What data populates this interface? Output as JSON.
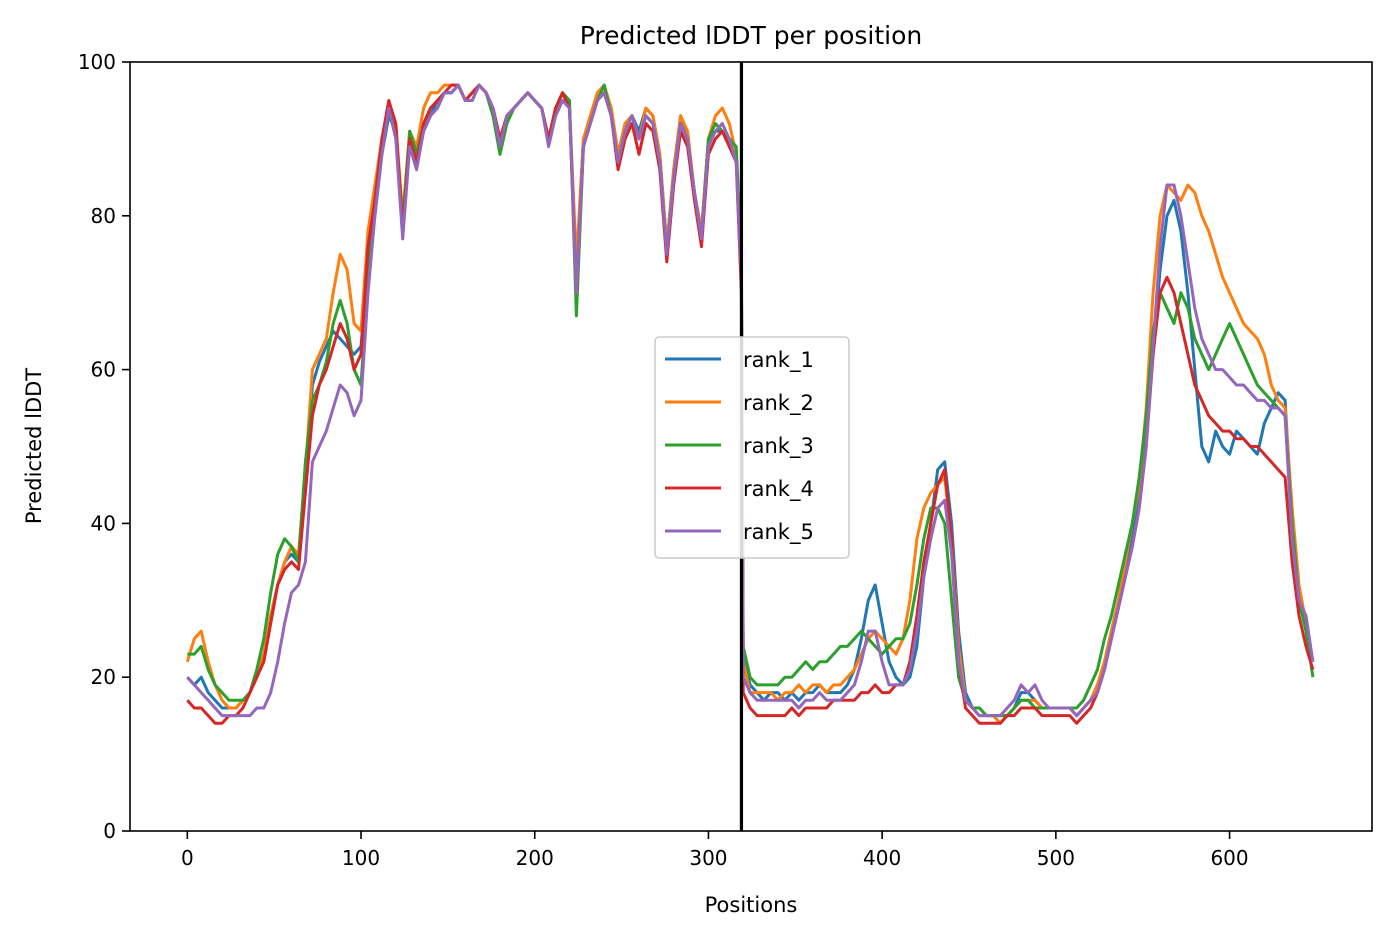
{
  "chart_data": {
    "type": "line",
    "title": "Predicted lDDT per position",
    "xlabel": "Positions",
    "ylabel": "Predicted lDDT",
    "xlim": [
      -33,
      682
    ],
    "ylim": [
      0,
      100
    ],
    "xticks": [
      0,
      100,
      200,
      300,
      400,
      500,
      600
    ],
    "yticks": [
      0,
      20,
      40,
      60,
      80,
      100
    ],
    "grid": false,
    "legend": "center",
    "vertical_line": {
      "x": 319,
      "color": "#000000"
    },
    "x": [
      0,
      4,
      8,
      12,
      16,
      20,
      24,
      28,
      32,
      36,
      40,
      44,
      48,
      52,
      56,
      60,
      64,
      68,
      72,
      76,
      80,
      84,
      88,
      92,
      96,
      100,
      104,
      108,
      112,
      116,
      120,
      124,
      128,
      132,
      136,
      140,
      144,
      148,
      152,
      156,
      160,
      164,
      168,
      172,
      176,
      180,
      184,
      188,
      192,
      196,
      200,
      204,
      208,
      212,
      216,
      220,
      224,
      228,
      232,
      236,
      240,
      244,
      248,
      252,
      256,
      260,
      264,
      268,
      272,
      276,
      280,
      284,
      288,
      292,
      296,
      300,
      304,
      308,
      312,
      316,
      319,
      320,
      324,
      328,
      332,
      336,
      340,
      344,
      348,
      352,
      356,
      360,
      364,
      368,
      372,
      376,
      380,
      384,
      388,
      392,
      396,
      400,
      404,
      408,
      412,
      416,
      420,
      424,
      428,
      432,
      436,
      440,
      444,
      448,
      452,
      456,
      460,
      464,
      468,
      472,
      476,
      480,
      484,
      488,
      492,
      496,
      500,
      504,
      508,
      512,
      516,
      520,
      524,
      528,
      532,
      536,
      540,
      544,
      548,
      552,
      556,
      560,
      564,
      568,
      572,
      576,
      580,
      584,
      588,
      592,
      596,
      600,
      604,
      608,
      612,
      616,
      620,
      624,
      628,
      632,
      636,
      640,
      644,
      648
    ],
    "series": [
      {
        "name": "rank_1",
        "color": "#1f77b4",
        "values": [
          20,
          19,
          20,
          18,
          17,
          16,
          16,
          16,
          17,
          18,
          20,
          23,
          28,
          32,
          35,
          36,
          35,
          45,
          58,
          61,
          63,
          65,
          64,
          63,
          62,
          63,
          74,
          80,
          88,
          93,
          91,
          78,
          90,
          87,
          91,
          93,
          95,
          96,
          96,
          97,
          95,
          96,
          97,
          96,
          94,
          90,
          93,
          94,
          95,
          96,
          95,
          94,
          90,
          93,
          95,
          94,
          72,
          90,
          92,
          95,
          96,
          94,
          88,
          92,
          93,
          91,
          94,
          93,
          88,
          76,
          86,
          93,
          90,
          83,
          78,
          90,
          91,
          91,
          90,
          88,
          72,
          23,
          19,
          18,
          17,
          18,
          18,
          17,
          18,
          17,
          18,
          18,
          19,
          18,
          18,
          18,
          19,
          21,
          25,
          30,
          32,
          27,
          22,
          20,
          19,
          20,
          24,
          33,
          40,
          47,
          48,
          40,
          26,
          18,
          16,
          16,
          15,
          15,
          15,
          15,
          16,
          18,
          18,
          17,
          16,
          16,
          16,
          16,
          16,
          15,
          16,
          17,
          19,
          22,
          26,
          30,
          34,
          38,
          43,
          52,
          62,
          73,
          80,
          82,
          78,
          70,
          60,
          50,
          48,
          52,
          50,
          49,
          52,
          51,
          50,
          49,
          53,
          55,
          57,
          56,
          40,
          30,
          26,
          22
        ]
      },
      {
        "name": "rank_2",
        "color": "#ff7f0e",
        "values": [
          22,
          25,
          26,
          22,
          19,
          17,
          16,
          16,
          17,
          18,
          20,
          23,
          28,
          32,
          35,
          37,
          36,
          47,
          60,
          62,
          64,
          70,
          75,
          73,
          66,
          65,
          78,
          84,
          90,
          94,
          92,
          80,
          91,
          89,
          94,
          96,
          96,
          97,
          97,
          97,
          95,
          96,
          97,
          96,
          94,
          90,
          93,
          94,
          95,
          96,
          95,
          94,
          90,
          94,
          96,
          94,
          74,
          90,
          93,
          96,
          97,
          94,
          88,
          92,
          93,
          90,
          94,
          93,
          88,
          76,
          86,
          93,
          91,
          83,
          78,
          90,
          93,
          94,
          92,
          88,
          72,
          22,
          18,
          18,
          18,
          18,
          17,
          18,
          18,
          19,
          18,
          19,
          19,
          18,
          19,
          19,
          20,
          21,
          23,
          25,
          26,
          25,
          24,
          23,
          25,
          30,
          38,
          42,
          44,
          45,
          46,
          38,
          24,
          17,
          16,
          15,
          15,
          15,
          14,
          15,
          16,
          17,
          17,
          17,
          16,
          16,
          16,
          16,
          16,
          15,
          16,
          17,
          19,
          22,
          26,
          30,
          35,
          40,
          45,
          55,
          70,
          80,
          84,
          83,
          82,
          84,
          83,
          80,
          78,
          75,
          72,
          70,
          68,
          66,
          65,
          64,
          62,
          58,
          56,
          55,
          42,
          32,
          27,
          22
        ]
      },
      {
        "name": "rank_3",
        "color": "#2ca02c",
        "values": [
          23,
          23,
          24,
          21,
          19,
          18,
          17,
          17,
          17,
          18,
          21,
          25,
          31,
          36,
          38,
          37,
          35,
          48,
          56,
          58,
          61,
          66,
          69,
          66,
          60,
          58,
          72,
          82,
          89,
          94,
          91,
          79,
          91,
          88,
          92,
          94,
          95,
          96,
          96,
          97,
          95,
          95,
          97,
          96,
          93,
          88,
          92,
          94,
          95,
          96,
          95,
          94,
          90,
          94,
          96,
          95,
          67,
          89,
          92,
          95,
          97,
          93,
          87,
          91,
          93,
          90,
          93,
          92,
          87,
          75,
          85,
          92,
          90,
          83,
          77,
          90,
          92,
          91,
          90,
          89,
          74,
          24,
          20,
          19,
          19,
          19,
          19,
          20,
          20,
          21,
          22,
          21,
          22,
          22,
          23,
          24,
          24,
          25,
          26,
          25,
          24,
          23,
          24,
          25,
          25,
          27,
          32,
          38,
          42,
          42,
          40,
          30,
          20,
          17,
          16,
          16,
          15,
          15,
          15,
          15,
          16,
          17,
          17,
          16,
          16,
          16,
          16,
          16,
          16,
          16,
          17,
          19,
          21,
          25,
          28,
          32,
          36,
          40,
          46,
          54,
          65,
          70,
          68,
          66,
          70,
          68,
          64,
          62,
          60,
          62,
          64,
          66,
          64,
          62,
          60,
          58,
          57,
          56,
          55,
          54,
          40,
          30,
          26,
          20
        ]
      },
      {
        "name": "rank_4",
        "color": "#d62728",
        "values": [
          17,
          16,
          16,
          15,
          14,
          14,
          15,
          15,
          16,
          18,
          20,
          22,
          27,
          32,
          34,
          35,
          34,
          44,
          54,
          58,
          60,
          63,
          66,
          64,
          60,
          62,
          76,
          82,
          90,
          95,
          92,
          78,
          90,
          87,
          92,
          94,
          95,
          96,
          97,
          97,
          95,
          96,
          97,
          96,
          94,
          90,
          93,
          94,
          95,
          96,
          95,
          94,
          90,
          94,
          96,
          94,
          70,
          89,
          92,
          95,
          96,
          93,
          86,
          90,
          92,
          88,
          92,
          91,
          86,
          74,
          84,
          91,
          89,
          82,
          76,
          88,
          90,
          91,
          89,
          87,
          70,
          18,
          16,
          15,
          15,
          15,
          15,
          15,
          16,
          15,
          16,
          16,
          16,
          16,
          17,
          17,
          17,
          17,
          18,
          18,
          19,
          18,
          18,
          19,
          19,
          22,
          28,
          35,
          40,
          45,
          47,
          38,
          22,
          16,
          15,
          14,
          14,
          14,
          14,
          15,
          15,
          16,
          16,
          16,
          15,
          15,
          15,
          15,
          15,
          14,
          15,
          16,
          18,
          21,
          25,
          29,
          33,
          37,
          42,
          50,
          62,
          70,
          72,
          70,
          66,
          62,
          58,
          56,
          54,
          53,
          52,
          52,
          51,
          51,
          50,
          50,
          49,
          48,
          47,
          46,
          35,
          28,
          24,
          21
        ]
      },
      {
        "name": "rank_5",
        "color": "#9467bd",
        "values": [
          20,
          19,
          18,
          17,
          16,
          15,
          15,
          15,
          15,
          15,
          16,
          16,
          18,
          22,
          27,
          31,
          32,
          35,
          48,
          50,
          52,
          55,
          58,
          57,
          54,
          56,
          70,
          80,
          88,
          94,
          90,
          77,
          89,
          86,
          91,
          93,
          94,
          96,
          96,
          97,
          95,
          95,
          97,
          96,
          94,
          89,
          93,
          94,
          95,
          96,
          95,
          94,
          89,
          93,
          95,
          94,
          70,
          89,
          92,
          95,
          96,
          93,
          87,
          91,
          93,
          90,
          93,
          92,
          87,
          75,
          85,
          92,
          90,
          83,
          77,
          89,
          91,
          92,
          90,
          87,
          72,
          20,
          18,
          17,
          17,
          17,
          17,
          17,
          17,
          16,
          17,
          17,
          18,
          17,
          17,
          17,
          18,
          19,
          22,
          26,
          26,
          22,
          19,
          19,
          19,
          21,
          26,
          33,
          38,
          42,
          43,
          36,
          22,
          17,
          16,
          15,
          15,
          15,
          15,
          16,
          17,
          19,
          18,
          19,
          17,
          16,
          16,
          16,
          16,
          15,
          16,
          17,
          18,
          21,
          25,
          29,
          33,
          37,
          42,
          50,
          63,
          76,
          84,
          84,
          80,
          74,
          68,
          64,
          62,
          60,
          60,
          59,
          58,
          58,
          57,
          56,
          56,
          55,
          55,
          54,
          38,
          30,
          28,
          22
        ]
      }
    ]
  }
}
